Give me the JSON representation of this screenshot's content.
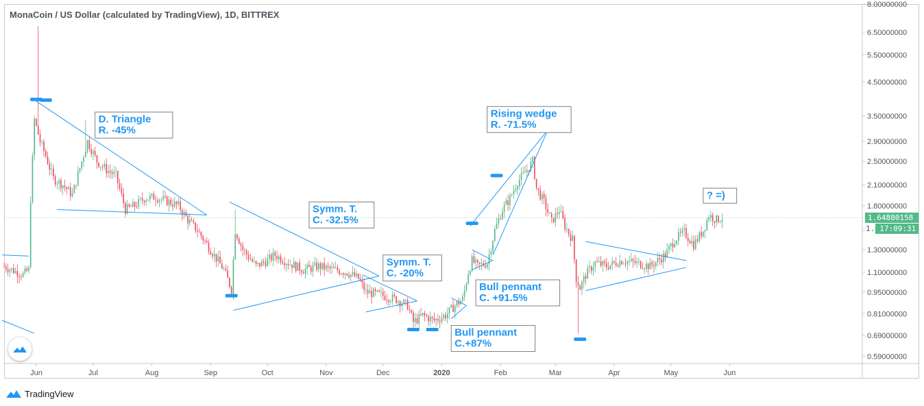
{
  "title": "MonaCoin / US Dollar (calculated by TradingView), 1D, BITTREX",
  "footer": {
    "brand": "TradingView"
  },
  "colors": {
    "up": "#53b987",
    "down": "#eb4d5c",
    "annotation": "#2196f3",
    "axis": "#50535e"
  },
  "price_tags": {
    "last_price": "1.64880158",
    "countdown": "17:09:31",
    "countdown_prefix": "1."
  },
  "chart_data": {
    "type": "candlestick",
    "scale": "log",
    "ylim": [
      0.56,
      8.0
    ],
    "y_ticks": [
      "8.00000000",
      "6.50000000",
      "5.50000000",
      "4.50000000",
      "3.50000000",
      "2.90000000",
      "2.50000000",
      "2.10000000",
      "1.80000000",
      "1.50000000",
      "1.30000000",
      "1.10000000",
      "0.95000000",
      "0.81000000",
      "0.69000000",
      "0.59000000"
    ],
    "x_ticks": [
      "Jun",
      "Jul",
      "Aug",
      "Sep",
      "Oct",
      "Nov",
      "Dec",
      "2020",
      "Feb",
      "Mar",
      "Apr",
      "May",
      "Jun"
    ],
    "x_tick_dates": [
      "2019-06-01",
      "2019-07-01",
      "2019-08-01",
      "2019-09-01",
      "2019-10-01",
      "2019-11-01",
      "2019-12-01",
      "2020-01-01",
      "2020-02-01",
      "2020-03-01",
      "2020-04-01",
      "2020-05-01",
      "2020-06-01"
    ],
    "x_range": [
      "2019-05-15",
      "2020-08-10"
    ],
    "last_date": "2020-05-28",
    "close_path": [
      [
        "2019-05-15",
        1.15
      ],
      [
        "2019-05-25",
        1.08
      ],
      [
        "2019-05-28",
        1.12
      ],
      [
        "2019-05-29",
        1.9
      ],
      [
        "2019-05-31",
        3.4
      ],
      [
        "2019-06-03",
        2.9
      ],
      [
        "2019-06-06",
        2.6
      ],
      [
        "2019-06-10",
        2.2
      ],
      [
        "2019-06-15",
        2.1
      ],
      [
        "2019-06-20",
        1.95
      ],
      [
        "2019-06-25",
        2.5
      ],
      [
        "2019-06-28",
        2.9
      ],
      [
        "2019-07-03",
        2.5
      ],
      [
        "2019-07-08",
        2.35
      ],
      [
        "2019-07-13",
        2.25
      ],
      [
        "2019-07-18",
        1.75
      ],
      [
        "2019-07-23",
        1.8
      ],
      [
        "2019-07-28",
        1.9
      ],
      [
        "2019-08-03",
        1.92
      ],
      [
        "2019-08-10",
        1.85
      ],
      [
        "2019-08-15",
        1.8
      ],
      [
        "2019-08-20",
        1.62
      ],
      [
        "2019-08-25",
        1.5
      ],
      [
        "2019-09-01",
        1.3
      ],
      [
        "2019-09-08",
        1.12
      ],
      [
        "2019-09-12",
        0.97
      ],
      [
        "2019-09-14",
        1.5
      ],
      [
        "2019-09-18",
        1.3
      ],
      [
        "2019-09-25",
        1.15
      ],
      [
        "2019-10-01",
        1.2
      ],
      [
        "2019-10-05",
        1.25
      ],
      [
        "2019-10-12",
        1.18
      ],
      [
        "2019-10-20",
        1.12
      ],
      [
        "2019-10-28",
        1.15
      ],
      [
        "2019-11-05",
        1.12
      ],
      [
        "2019-11-12",
        1.1
      ],
      [
        "2019-11-18",
        1.05
      ],
      [
        "2019-11-22",
        0.95
      ],
      [
        "2019-11-30",
        0.93
      ],
      [
        "2019-12-08",
        0.9
      ],
      [
        "2019-12-14",
        0.86
      ],
      [
        "2019-12-17",
        0.76
      ],
      [
        "2019-12-22",
        0.8
      ],
      [
        "2019-12-28",
        0.77
      ],
      [
        "2020-01-03",
        0.8
      ],
      [
        "2020-01-08",
        0.86
      ],
      [
        "2020-01-12",
        0.9
      ],
      [
        "2020-01-15",
        1.1
      ],
      [
        "2020-01-17",
        1.2
      ],
      [
        "2020-01-20",
        1.15
      ],
      [
        "2020-01-25",
        1.18
      ],
      [
        "2020-01-29",
        1.5
      ],
      [
        "2020-02-02",
        1.75
      ],
      [
        "2020-02-06",
        1.9
      ],
      [
        "2020-02-10",
        2.15
      ],
      [
        "2020-02-14",
        2.3
      ],
      [
        "2020-02-18",
        2.5
      ],
      [
        "2020-02-20",
        2.05
      ],
      [
        "2020-02-24",
        1.85
      ],
      [
        "2020-02-28",
        1.6
      ],
      [
        "2020-03-03",
        1.75
      ],
      [
        "2020-03-06",
        1.55
      ],
      [
        "2020-03-10",
        1.4
      ],
      [
        "2020-03-12",
        1.05
      ],
      [
        "2020-03-14",
        0.98
      ],
      [
        "2020-03-17",
        1.08
      ],
      [
        "2020-03-22",
        1.18
      ],
      [
        "2020-03-28",
        1.15
      ],
      [
        "2020-04-05",
        1.2
      ],
      [
        "2020-04-12",
        1.18
      ],
      [
        "2020-04-20",
        1.15
      ],
      [
        "2020-04-28",
        1.25
      ],
      [
        "2020-05-03",
        1.4
      ],
      [
        "2020-05-08",
        1.48
      ],
      [
        "2020-05-13",
        1.35
      ],
      [
        "2020-05-18",
        1.5
      ],
      [
        "2020-05-21",
        1.68
      ],
      [
        "2020-05-25",
        1.62
      ],
      [
        "2020-05-28",
        1.65
      ]
    ],
    "spikes": [
      {
        "date": "2019-06-02",
        "high": 6.8
      },
      {
        "date": "2019-06-27",
        "high": 3.4
      },
      {
        "date": "2019-09-14",
        "high": 1.75
      },
      {
        "date": "2020-03-13",
        "high": 0.7
      }
    ],
    "annotations": [
      {
        "lines": [
          "D. Triangle",
          "R. -45%"
        ],
        "date": "2019-07-02",
        "price": 3.6
      },
      {
        "lines": [
          "Symm. T.",
          "C. -32.5%"
        ],
        "date": "2019-10-23",
        "price": 1.85
      },
      {
        "lines": [
          "Symm. T.",
          "C. -20%"
        ],
        "date": "2019-12-01",
        "price": 1.25
      },
      {
        "lines": [
          "Rising wedge",
          "R. -71.5%"
        ],
        "date": "2020-01-25",
        "price": 3.75
      },
      {
        "lines": [
          "Bull pennant",
          "C. +91.5%"
        ],
        "date": "2020-01-19",
        "price": 1.04
      },
      {
        "lines": [
          "Bull pennant",
          "C.+87%"
        ],
        "date": "2020-01-06",
        "price": 0.742
      },
      {
        "lines": [
          "? =)"
        ],
        "date": "2020-05-18",
        "price": 2.05
      }
    ],
    "trendlines": [
      {
        "from": [
          "2019-06-01",
          3.9
        ],
        "to": [
          "2019-08-30",
          1.68
        ]
      },
      {
        "from": [
          "2019-06-12",
          1.75
        ],
        "to": [
          "2019-08-30",
          1.68
        ]
      },
      {
        "from": [
          "2019-05-14",
          1.25
        ],
        "to": [
          "2019-05-28",
          1.24
        ]
      },
      {
        "from": [
          "2019-05-14",
          0.77
        ],
        "to": [
          "2019-05-31",
          0.7
        ]
      },
      {
        "from": [
          "2019-09-11",
          1.85
        ],
        "to": [
          "2019-11-29",
          1.07
        ]
      },
      {
        "from": [
          "2019-09-13",
          0.83
        ],
        "to": [
          "2019-11-29",
          1.07
        ]
      },
      {
        "from": [
          "2019-11-20",
          1.08
        ],
        "to": [
          "2019-12-19",
          0.89
        ]
      },
      {
        "from": [
          "2019-11-22",
          0.82
        ],
        "to": [
          "2019-12-19",
          0.89
        ]
      },
      {
        "from": [
          "2020-01-06",
          0.91
        ],
        "to": [
          "2020-01-14",
          0.86
        ]
      },
      {
        "from": [
          "2020-01-06",
          0.78
        ],
        "to": [
          "2020-01-14",
          0.86
        ]
      },
      {
        "from": [
          "2020-01-17",
          1.3
        ],
        "to": [
          "2020-01-28",
          1.2
        ]
      },
      {
        "from": [
          "2020-01-17",
          1.12
        ],
        "to": [
          "2020-01-28",
          1.2
        ]
      },
      {
        "from": [
          "2020-01-16",
          1.55
        ],
        "to": [
          "2020-02-26",
          3.15
        ]
      },
      {
        "from": [
          "2020-01-28",
          1.25
        ],
        "to": [
          "2020-02-26",
          3.15
        ]
      },
      {
        "from": [
          "2020-03-17",
          1.38
        ],
        "to": [
          "2020-05-09",
          1.2
        ]
      },
      {
        "from": [
          "2020-03-17",
          0.96
        ],
        "to": [
          "2020-05-09",
          1.14
        ]
      }
    ],
    "markers": [
      {
        "date": "2019-06-01",
        "price": 3.95
      },
      {
        "date": "2019-06-06",
        "price": 3.93
      },
      {
        "date": "2019-09-12",
        "price": 0.925
      },
      {
        "date": "2019-12-17",
        "price": 0.72
      },
      {
        "date": "2019-12-27",
        "price": 0.72
      },
      {
        "date": "2020-01-17",
        "price": 1.58
      },
      {
        "date": "2020-01-30",
        "price": 2.25
      },
      {
        "date": "2020-03-14",
        "price": 0.67
      }
    ]
  }
}
